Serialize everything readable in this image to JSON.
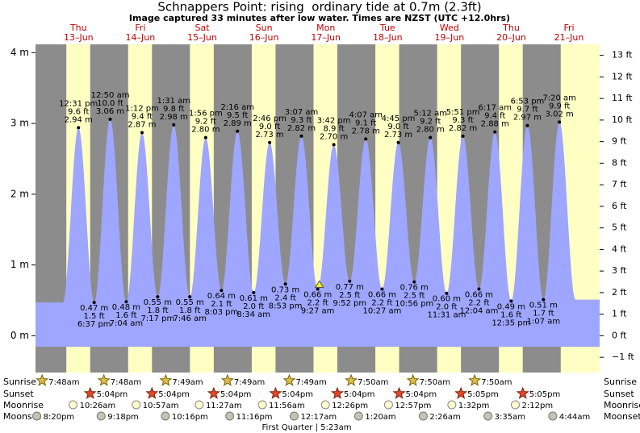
{
  "title": "Schnappers Point: rising  ordinary tide at 0.7m (2.3ft)",
  "subtitle": "Image captured 33 minutes after low water. Times are NZST (UTC +12.0hrs)",
  "chart_data": {
    "type": "tide",
    "ylim": [
      -0.52,
      4.118
    ],
    "yticks": [
      {
        "value": 0,
        "label": "0 m"
      },
      {
        "value": 1,
        "label": "1 m"
      },
      {
        "value": 2,
        "label": "2 m"
      },
      {
        "value": 3,
        "label": "3 m"
      },
      {
        "value": 4,
        "label": "4 m"
      }
    ],
    "y2lim": [
      -1.706,
      13.51
    ],
    "y2ticks": [
      {
        "value": -1,
        "label": "−1 ft"
      },
      {
        "value": 0,
        "label": "0 ft"
      },
      {
        "value": 1,
        "label": "1 ft"
      },
      {
        "value": 2,
        "label": "2 ft"
      },
      {
        "value": 3,
        "label": "3 ft"
      },
      {
        "value": 4,
        "label": "4 ft"
      },
      {
        "value": 5,
        "label": "5 ft"
      },
      {
        "value": 6,
        "label": "6 ft"
      },
      {
        "value": 7,
        "label": "7 ft"
      },
      {
        "value": 8,
        "label": "8 ft"
      },
      {
        "value": 9,
        "label": "9 ft"
      },
      {
        "value": 10,
        "label": "10 ft"
      },
      {
        "value": 11,
        "label": "11 ft"
      },
      {
        "value": 12,
        "label": "12 ft"
      },
      {
        "value": 13,
        "label": "13 ft"
      }
    ],
    "color": "#9ea6ff",
    "tides": [
      {
        "time": "12:31 pm",
        "m": 2.94,
        "m_label": "2.94 m",
        "ft_label": "9.6 ft"
      },
      {
        "time": "6:37 pm",
        "m": 0.47,
        "m_label": "0.47 m",
        "ft_label": "1.5 ft"
      },
      {
        "time": "12:50 am",
        "m": 3.06,
        "m_label": "3.06 m",
        "ft_label": "10.0 ft"
      },
      {
        "time": "7:04 am",
        "m": 0.48,
        "m_label": "0.48 m",
        "ft_label": "1.6 ft"
      },
      {
        "time": "1:12 pm",
        "m": 2.87,
        "m_label": "2.87 m",
        "ft_label": "9.4 ft"
      },
      {
        "time": "7:17 pm",
        "m": 0.55,
        "m_label": "0.55 m",
        "ft_label": "1.8 ft"
      },
      {
        "time": "1:31 am",
        "m": 2.98,
        "m_label": "2.98 m",
        "ft_label": "9.8 ft"
      },
      {
        "time": "7:46 am",
        "m": 0.55,
        "m_label": "0.55 m",
        "ft_label": "1.8 ft"
      },
      {
        "time": "1:56 pm",
        "m": 2.8,
        "m_label": "2.80 m",
        "ft_label": "9.2 ft"
      },
      {
        "time": "8:03 pm",
        "m": 0.64,
        "m_label": "0.64 m",
        "ft_label": "2.1 ft"
      },
      {
        "time": "2:16 am",
        "m": 2.89,
        "m_label": "2.89 m",
        "ft_label": "9.5 ft"
      },
      {
        "time": "8:34 am",
        "m": 0.61,
        "m_label": "0.61 m",
        "ft_label": "2.0 ft"
      },
      {
        "time": "2:46 pm",
        "m": 2.73,
        "m_label": "2.73 m",
        "ft_label": "9.0 ft"
      },
      {
        "time": "8:53 pm",
        "m": 0.73,
        "m_label": "0.73 m",
        "ft_label": "2.4 ft"
      },
      {
        "time": "3:07 am",
        "m": 2.82,
        "m_label": "2.82 m",
        "ft_label": "9.3 ft"
      },
      {
        "time": "9:27 am",
        "m": 0.66,
        "m_label": "0.66 m",
        "ft_label": "2.2 ft"
      },
      {
        "time": "3:42 pm",
        "m": 2.7,
        "m_label": "2.70 m",
        "ft_label": "8.9 ft"
      },
      {
        "time": "9:52 pm",
        "m": 0.77,
        "m_label": "0.77 m",
        "ft_label": "2.5 ft"
      },
      {
        "time": "4:07 am",
        "m": 2.78,
        "m_label": "2.78 m",
        "ft_label": "9.1 ft"
      },
      {
        "time": "10:27 am",
        "m": 0.66,
        "m_label": "0.66 m",
        "ft_label": "2.2 ft"
      },
      {
        "time": "4:45 pm",
        "m": 2.73,
        "m_label": "2.73 m",
        "ft_label": "9.0 ft"
      },
      {
        "time": "10:56 pm",
        "m": 0.76,
        "m_label": "0.76 m",
        "ft_label": "2.5 ft"
      },
      {
        "time": "5:12 am",
        "m": 2.8,
        "m_label": "2.80 m",
        "ft_label": "9.2 ft"
      },
      {
        "time": "11:31 am",
        "m": 0.6,
        "m_label": "0.60 m",
        "ft_label": "2.0 ft"
      },
      {
        "time": "5:51 pm",
        "m": 2.82,
        "m_label": "2.82 m",
        "ft_label": "9.3 ft"
      },
      {
        "time": "12:04 am",
        "m": 0.66,
        "m_label": "0.66 m",
        "ft_label": "2.2 ft"
      },
      {
        "time": "6:17 am",
        "m": 2.88,
        "m_label": "2.88 m",
        "ft_label": "9.4 ft"
      },
      {
        "time": "12:35 pm",
        "m": 0.49,
        "m_label": "0.49 m",
        "ft_label": "1.6 ft"
      },
      {
        "time": "6:53 pm",
        "m": 2.97,
        "m_label": "2.97 m",
        "ft_label": "9.7 ft"
      },
      {
        "time": "1:07 am",
        "m": 0.51,
        "m_label": "0.51 m",
        "ft_label": "1.7 ft"
      },
      {
        "time": "7:20 am",
        "m": 3.02,
        "m_label": "3.02 m",
        "ft_label": "9.9 ft"
      }
    ],
    "days": [
      {
        "name": "Thu",
        "date": "13–Jun",
        "sunrise": "7:48am",
        "sunset": "5:04pm",
        "moonrise": "10:26am"
      },
      {
        "name": "Fri",
        "date": "14–Jun",
        "sunrise": "7:48am",
        "sunset": "5:04pm",
        "moonrise": "10:57am"
      },
      {
        "name": "Sat",
        "date": "15–Jun",
        "sunrise": "7:49am",
        "sunset": "5:04pm",
        "moonrise": "11:27am"
      },
      {
        "name": "Sun",
        "date": "16–Jun",
        "sunrise": "7:49am",
        "sunset": "5:04pm",
        "moonrise": "11:56am"
      },
      {
        "name": "Mon",
        "date": "17–Jun",
        "sunrise": "7:49am",
        "sunset": "5:04pm",
        "moonrise": "12:26pm"
      },
      {
        "name": "Tue",
        "date": "18–Jun",
        "sunrise": "7:50am",
        "sunset": "5:04pm",
        "moonrise": "12:57pm"
      },
      {
        "name": "Wed",
        "date": "19–Jun",
        "sunrise": "7:50am",
        "sunset": "5:05pm",
        "moonrise": "1:32pm"
      },
      {
        "name": "Thu",
        "date": "20–Jun",
        "sunrise": "7:50am",
        "sunset": "5:05pm",
        "moonrise": "2:12pm"
      },
      {
        "name": "Fri",
        "date": "21–Jun"
      }
    ],
    "moonset": [
      "8:20pm",
      "9:18pm",
      "10:16pm",
      "11:16pm",
      "12:17am",
      "1:20am",
      "2:26am",
      "3:35am",
      "4:44am"
    ],
    "row_labels": {
      "sunrise": "Sunrise",
      "sunset": "Sunset",
      "moonrise": "Moonrise",
      "moonset": "Moonset"
    },
    "moon_phase": "First Quarter | 5:23am"
  }
}
